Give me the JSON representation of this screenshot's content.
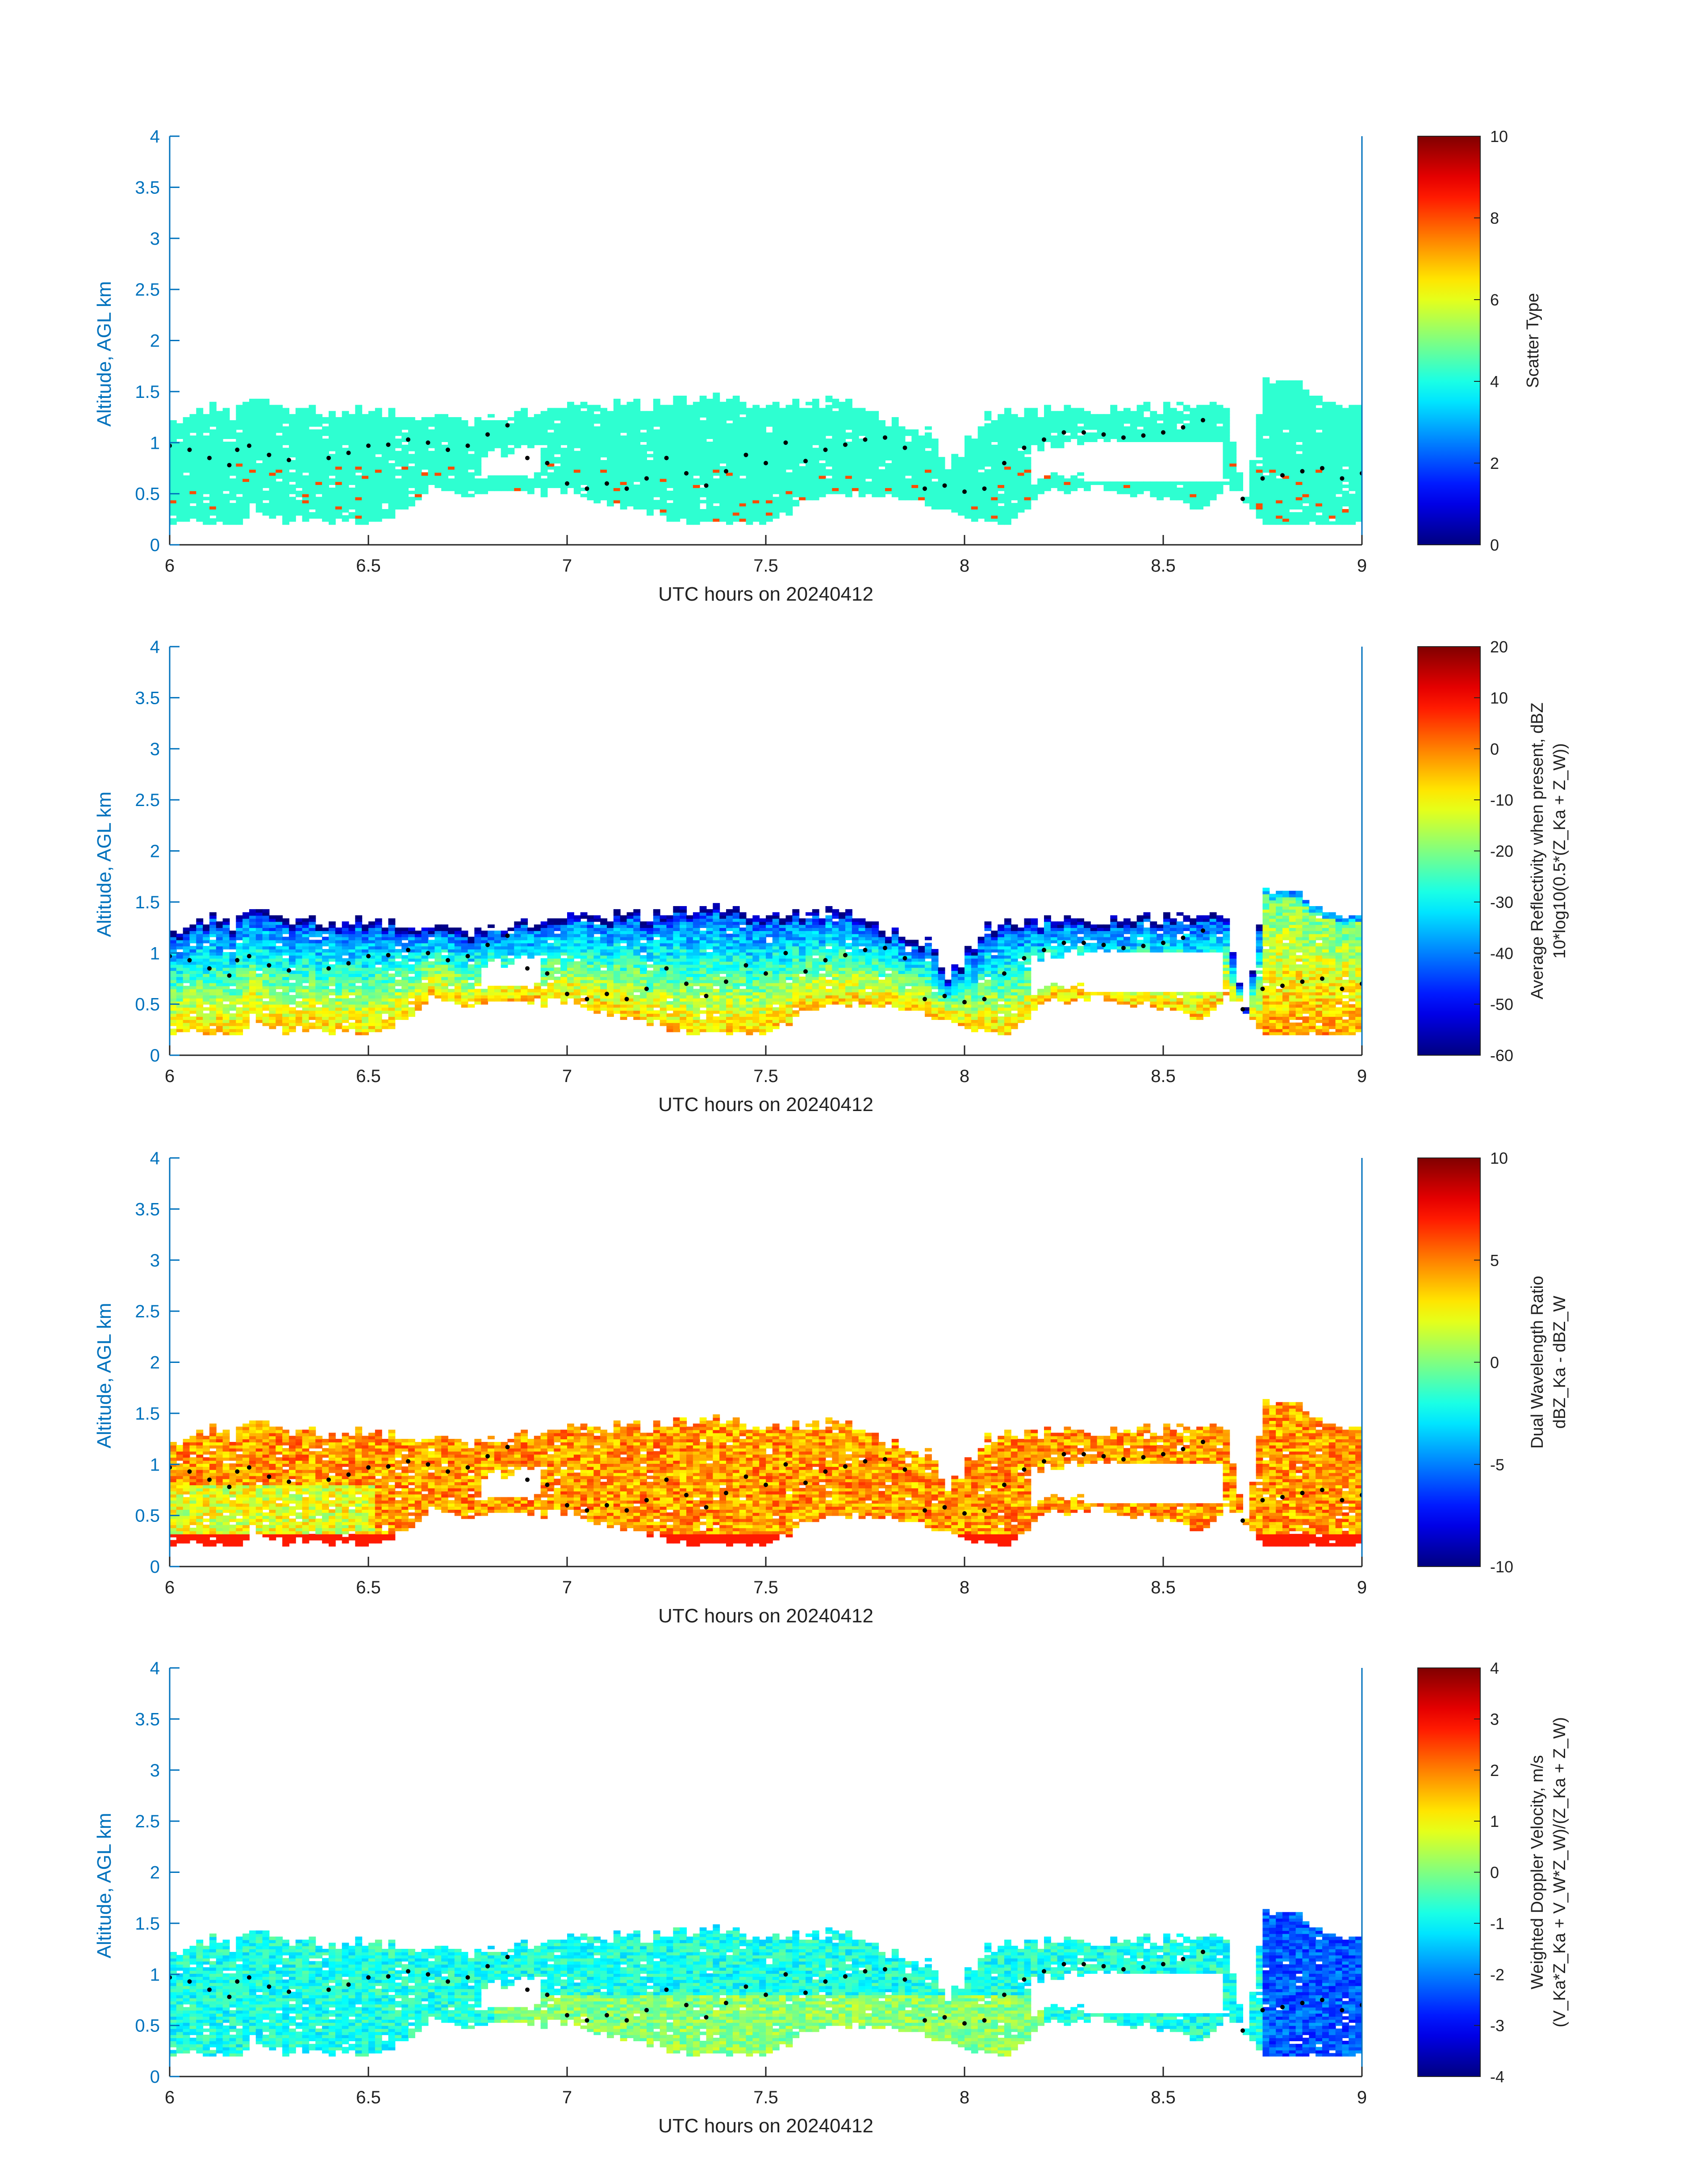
{
  "chart_data": [
    {
      "type": "heatmap",
      "xlabel": "UTC hours on 20240412",
      "ylabel": "Altitude, AGL km",
      "xlim": [
        6,
        9
      ],
      "ylim": [
        0,
        4
      ],
      "x_ticks": [
        "6",
        "6.5",
        "7",
        "7.5",
        "8",
        "8.5",
        "9"
      ],
      "y_ticks": [
        "0",
        "0.5",
        "1",
        "1.5",
        "2",
        "2.5",
        "3",
        "3.5",
        "4"
      ],
      "colorbar": {
        "label_line1": "Scatter Type",
        "label_line2": "",
        "ticks": [
          "0",
          "2",
          "4",
          "6",
          "8",
          "10"
        ],
        "range": [
          0,
          10
        ]
      },
      "field": "scatter_type"
    },
    {
      "type": "heatmap",
      "xlabel": "UTC hours on 20240412",
      "ylabel": "Altitude, AGL km",
      "xlim": [
        6,
        9
      ],
      "ylim": [
        0,
        4
      ],
      "x_ticks": [
        "6",
        "6.5",
        "7",
        "7.5",
        "8",
        "8.5",
        "9"
      ],
      "y_ticks": [
        "0",
        "0.5",
        "1",
        "1.5",
        "2",
        "2.5",
        "3",
        "3.5",
        "4"
      ],
      "colorbar": {
        "label_line1": "Average Reflectivity when present, dBZ",
        "label_line2": "10*log10(0.5*(Z_Ka + Z_W))",
        "ticks": [
          "-60",
          "-50",
          "-40",
          "-30",
          "-20",
          "-10",
          "0",
          "10",
          "20"
        ],
        "range": [
          -60,
          20
        ]
      },
      "field": "reflectivity"
    },
    {
      "type": "heatmap",
      "xlabel": "UTC hours on 20240412",
      "ylabel": "Altitude, AGL km",
      "xlim": [
        6,
        9
      ],
      "ylim": [
        0,
        4
      ],
      "x_ticks": [
        "6",
        "6.5",
        "7",
        "7.5",
        "8",
        "8.5",
        "9"
      ],
      "y_ticks": [
        "0",
        "0.5",
        "1",
        "1.5",
        "2",
        "2.5",
        "3",
        "3.5",
        "4"
      ],
      "colorbar": {
        "label_line1": "Dual Wavelength Ratio",
        "label_line2": "dBZ_Ka - dBZ_W",
        "ticks": [
          "-10",
          "-5",
          "0",
          "5",
          "10"
        ],
        "range": [
          -10,
          10
        ]
      },
      "field": "dwr"
    },
    {
      "type": "heatmap",
      "xlabel": "UTC hours on 20240412",
      "ylabel": "Altitude, AGL km",
      "xlim": [
        6,
        9
      ],
      "ylim": [
        0,
        4
      ],
      "x_ticks": [
        "6",
        "6.5",
        "7",
        "7.5",
        "8",
        "8.5",
        "9"
      ],
      "y_ticks": [
        "0",
        "0.5",
        "1",
        "1.5",
        "2",
        "2.5",
        "3",
        "3.5",
        "4"
      ],
      "colorbar": {
        "label_line1": "Weighted Doppler Velocity, m/s",
        "label_line2": "(V_Ka*Z_Ka + V_W*Z_W)/(Z_Ka + Z_W)",
        "ticks": [
          "-4",
          "-3",
          "-2",
          "-1",
          "0",
          "1",
          "2",
          "3",
          "4"
        ],
        "range": [
          -4,
          4
        ]
      },
      "field": "velocity"
    }
  ],
  "cloud_layer": {
    "base_km": [
      [
        6.0,
        0.2
      ],
      [
        6.17,
        0.2
      ],
      [
        6.2,
        0.35
      ],
      [
        6.3,
        0.2
      ],
      [
        6.5,
        0.2
      ],
      [
        6.55,
        0.25
      ],
      [
        6.65,
        0.55
      ],
      [
        6.75,
        0.45
      ],
      [
        6.8,
        0.5
      ],
      [
        7.0,
        0.5
      ],
      [
        7.2,
        0.3
      ],
      [
        7.3,
        0.2
      ],
      [
        7.5,
        0.2
      ],
      [
        7.6,
        0.45
      ],
      [
        7.8,
        0.5
      ],
      [
        7.95,
        0.3
      ],
      [
        8.1,
        0.2
      ],
      [
        8.2,
        0.5
      ],
      [
        8.3,
        0.55
      ],
      [
        8.45,
        0.45
      ],
      [
        8.6,
        0.35
      ],
      [
        8.65,
        0.6
      ],
      [
        8.7,
        0.4
      ],
      [
        8.75,
        0.2
      ],
      [
        9.0,
        0.2
      ]
    ],
    "top_km": [
      [
        6.0,
        1.2
      ],
      [
        6.1,
        1.35
      ],
      [
        6.15,
        1.25
      ],
      [
        6.2,
        1.4
      ],
      [
        6.3,
        1.3
      ],
      [
        6.5,
        1.3
      ],
      [
        6.65,
        1.25
      ],
      [
        6.75,
        1.2
      ],
      [
        6.85,
        1.25
      ],
      [
        7.0,
        1.35
      ],
      [
        7.2,
        1.35
      ],
      [
        7.35,
        1.45
      ],
      [
        7.5,
        1.35
      ],
      [
        7.7,
        1.4
      ],
      [
        7.8,
        1.2
      ],
      [
        7.9,
        1.1
      ],
      [
        7.95,
        0.75
      ],
      [
        8.05,
        1.25
      ],
      [
        8.15,
        1.3
      ],
      [
        8.3,
        1.3
      ],
      [
        8.45,
        1.35
      ],
      [
        8.6,
        1.35
      ],
      [
        8.65,
        1.3
      ],
      [
        8.7,
        0.5
      ],
      [
        8.75,
        1.6
      ],
      [
        8.85,
        1.55
      ],
      [
        8.9,
        1.35
      ],
      [
        9.0,
        1.3
      ]
    ],
    "gaps_hours": [
      [
        6.77,
        6.92
      ],
      [
        8.16,
        8.3
      ],
      [
        8.66,
        8.72
      ]
    ]
  },
  "radar_top_dots": [
    [
      6.0,
      0.97
    ],
    [
      6.05,
      0.93
    ],
    [
      6.1,
      0.85
    ],
    [
      6.15,
      0.78
    ],
    [
      6.17,
      0.93
    ],
    [
      6.2,
      0.97
    ],
    [
      6.25,
      0.88
    ],
    [
      6.3,
      0.83
    ],
    [
      6.4,
      0.85
    ],
    [
      6.45,
      0.9
    ],
    [
      6.5,
      0.97
    ],
    [
      6.55,
      0.98
    ],
    [
      6.6,
      1.03
    ],
    [
      6.65,
      1.0
    ],
    [
      6.7,
      0.93
    ],
    [
      6.75,
      0.97
    ],
    [
      6.8,
      1.08
    ],
    [
      6.85,
      1.17
    ],
    [
      6.9,
      0.85
    ],
    [
      6.95,
      0.8
    ],
    [
      7.0,
      0.6
    ],
    [
      7.05,
      0.55
    ],
    [
      7.1,
      0.6
    ],
    [
      7.15,
      0.55
    ],
    [
      7.2,
      0.65
    ],
    [
      7.25,
      0.85
    ],
    [
      7.3,
      0.7
    ],
    [
      7.35,
      0.58
    ],
    [
      7.4,
      0.72
    ],
    [
      7.45,
      0.88
    ],
    [
      7.5,
      0.8
    ],
    [
      7.55,
      1.0
    ],
    [
      7.6,
      0.82
    ],
    [
      7.65,
      0.93
    ],
    [
      7.7,
      0.98
    ],
    [
      7.75,
      1.03
    ],
    [
      7.8,
      1.05
    ],
    [
      7.85,
      0.95
    ],
    [
      7.9,
      0.55
    ],
    [
      7.95,
      0.58
    ],
    [
      8.0,
      0.52
    ],
    [
      8.05,
      0.55
    ],
    [
      8.1,
      0.8
    ],
    [
      8.15,
      0.95
    ],
    [
      8.2,
      1.03
    ],
    [
      8.25,
      1.1
    ],
    [
      8.3,
      1.1
    ],
    [
      8.35,
      1.08
    ],
    [
      8.4,
      1.05
    ],
    [
      8.45,
      1.07
    ],
    [
      8.5,
      1.1
    ],
    [
      8.55,
      1.15
    ],
    [
      8.6,
      1.22
    ],
    [
      8.7,
      0.45
    ],
    [
      8.75,
      0.65
    ],
    [
      8.8,
      0.68
    ],
    [
      8.85,
      0.72
    ],
    [
      8.9,
      0.75
    ],
    [
      8.95,
      0.65
    ],
    [
      9.0,
      0.7
    ]
  ]
}
